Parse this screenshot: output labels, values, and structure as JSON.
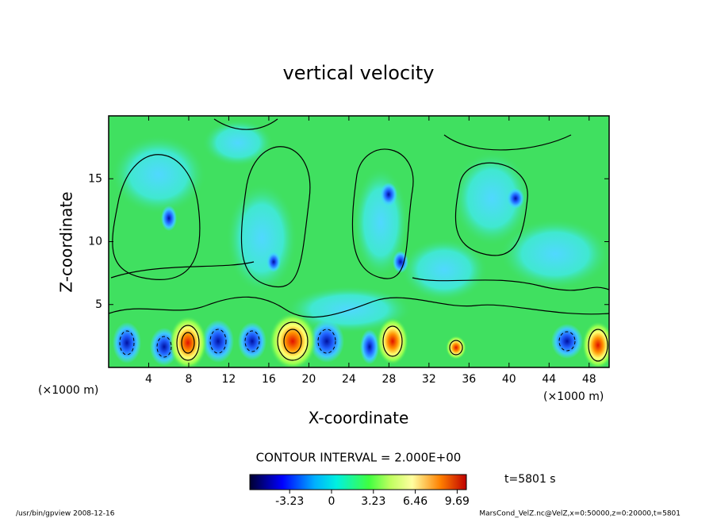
{
  "chart_data": {
    "type": "contour",
    "title": "vertical velocity",
    "xlabel": "X-coordinate",
    "ylabel": "Z-coordinate",
    "x_unit": "(×1000 m)",
    "xlim": [
      0,
      50
    ],
    "xticks": [
      4,
      8,
      12,
      16,
      20,
      24,
      28,
      32,
      36,
      40,
      44,
      48
    ],
    "ylim": [
      0,
      20
    ],
    "yticks": [
      5,
      10,
      15
    ],
    "contour_interval": "CONTOUR INTERVAL = 2.000E+00",
    "colorbar": {
      "lim": [
        -6.3,
        10.4
      ],
      "ticks": [
        -3.23,
        0,
        3.23,
        6.46,
        9.69
      ]
    },
    "time_label": "t=5801 s",
    "footer_left": "/usr/bin/gpview   2008-12-16",
    "footer_right": "MarsCond_VelZ.nc@VelZ,x=0:50000,z=0:20000,t=5801"
  }
}
